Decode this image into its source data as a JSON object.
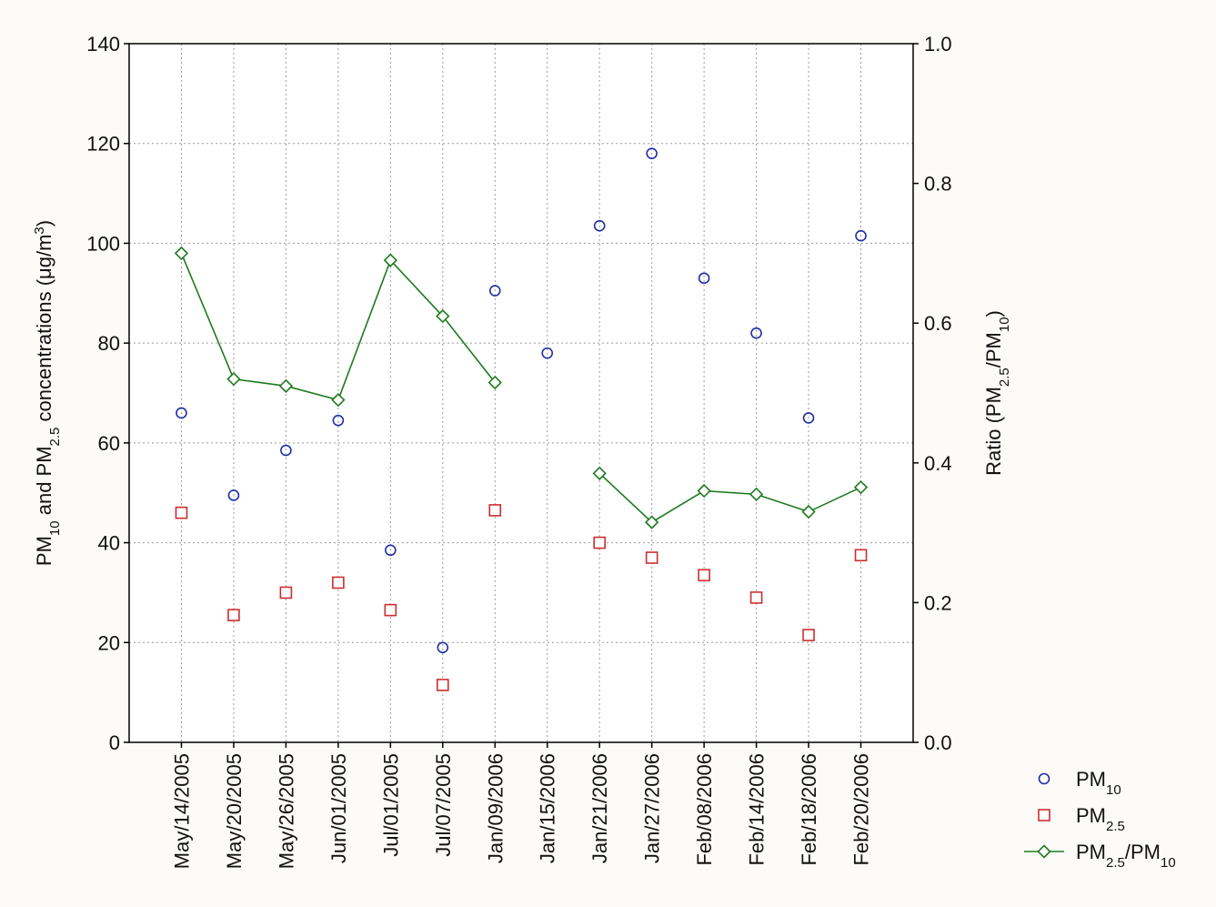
{
  "chart_data": {
    "type": "scatter",
    "title": "",
    "xlabel": "",
    "categories": [
      "May/14/2005",
      "May/20/2005",
      "May/26/2005",
      "Jun/01/2005",
      "Jul/01/2005",
      "Jul/07/2005",
      "Jan/09/2006",
      "Jan/15/2006",
      "Jan/21/2006",
      "Jan/27/2006",
      "Feb/08/2006",
      "Feb/14/2006",
      "Feb/18/2006",
      "Feb/20/2006"
    ],
    "y_left": {
      "label_parts": [
        {
          "t": "PM",
          "s": "n"
        },
        {
          "t": "10",
          "s": "sub"
        },
        {
          "t": " and PM",
          "s": "n"
        },
        {
          "t": "2.5",
          "s": "sub"
        },
        {
          "t": " concentrations (μg/m",
          "s": "n"
        },
        {
          "t": "3",
          "s": "sup"
        },
        {
          "t": ")",
          "s": "n"
        }
      ],
      "ylim": [
        0,
        140
      ],
      "ticks": [
        "0",
        "20",
        "40",
        "60",
        "80",
        "100",
        "120",
        "140"
      ]
    },
    "y_right": {
      "label_parts": [
        {
          "t": "Ratio (PM",
          "s": "n"
        },
        {
          "t": "2.5",
          "s": "sub"
        },
        {
          "t": "/PM",
          "s": "n"
        },
        {
          "t": "10",
          "s": "sub"
        },
        {
          "t": ")",
          "s": "n"
        }
      ],
      "ylim": [
        0,
        1.0
      ],
      "ticks": [
        "0.0",
        "0.2",
        "0.4",
        "0.6",
        "0.8",
        "1.0"
      ]
    },
    "grid": true,
    "legend_position": "bottom-right, outside",
    "series": [
      {
        "key": "pm10",
        "name_parts": [
          {
            "t": "PM",
            "s": "n"
          },
          {
            "t": "10",
            "s": "sub"
          }
        ],
        "marker": "circle",
        "color": "#1f2ea8",
        "axis": "left",
        "values": [
          66,
          49.5,
          58.5,
          64.5,
          38.5,
          19,
          90.5,
          78,
          103.5,
          118,
          93,
          82,
          65,
          101.5
        ]
      },
      {
        "key": "pm25",
        "name_parts": [
          {
            "t": "PM",
            "s": "n"
          },
          {
            "t": "2.5",
            "s": "sub"
          }
        ],
        "marker": "square",
        "color": "#cc2e2e",
        "axis": "left",
        "values": [
          46,
          25.5,
          30,
          32,
          26.5,
          11.5,
          46.5,
          null,
          40,
          37,
          33.5,
          29,
          21.5,
          37.5
        ]
      },
      {
        "key": "ratio",
        "name_parts": [
          {
            "t": "PM",
            "s": "n"
          },
          {
            "t": "2.5",
            "s": "sub"
          },
          {
            "t": "/PM",
            "s": "n"
          },
          {
            "t": "10",
            "s": "sub"
          }
        ],
        "marker": "diamond-line",
        "color": "#1e7a1e",
        "axis": "right",
        "values": [
          0.7,
          0.52,
          0.51,
          0.49,
          0.69,
          0.61,
          0.515,
          null,
          0.385,
          0.315,
          0.36,
          0.355,
          0.33,
          0.365
        ]
      }
    ]
  }
}
